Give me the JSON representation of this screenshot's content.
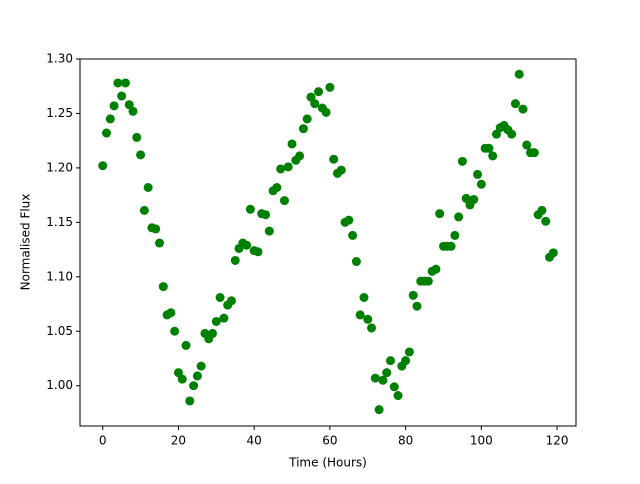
{
  "chart_data": {
    "type": "scatter",
    "x_label": "Time (Hours)",
    "y_label": "Normalised Flux",
    "color": "#008000",
    "x": [
      0,
      1,
      2,
      3,
      4,
      5,
      6,
      7,
      8,
      9,
      10,
      11,
      12,
      13,
      14,
      15,
      16,
      17,
      18,
      19,
      20,
      21,
      22,
      23,
      24,
      25,
      26,
      27,
      28,
      29,
      30,
      31,
      32,
      33,
      34,
      35,
      36,
      37,
      38,
      39,
      40,
      41,
      42,
      43,
      44,
      45,
      46,
      47,
      48,
      49,
      50,
      51,
      52,
      53,
      54,
      55,
      56,
      57,
      58,
      59,
      60,
      61,
      62,
      63,
      64,
      65,
      66,
      67,
      68,
      69,
      70,
      71,
      72,
      73,
      74,
      75,
      76,
      77,
      78,
      79,
      80,
      81,
      82,
      83,
      84,
      85,
      86,
      87,
      88,
      89,
      90,
      91,
      92,
      93,
      94,
      95,
      96,
      97,
      98,
      99,
      100,
      101,
      102,
      103,
      104,
      105,
      106,
      107,
      108,
      109,
      110,
      111,
      112,
      113,
      114,
      115,
      116,
      117,
      118,
      119
    ],
    "values": [
      1.202,
      1.232,
      1.245,
      1.257,
      1.278,
      1.266,
      1.278,
      1.258,
      1.252,
      1.228,
      1.212,
      1.161,
      1.182,
      1.145,
      1.144,
      1.131,
      1.091,
      1.065,
      1.067,
      1.05,
      1.012,
      1.006,
      1.037,
      0.986,
      1.0,
      1.009,
      1.018,
      1.048,
      1.043,
      1.048,
      1.059,
      1.081,
      1.062,
      1.074,
      1.078,
      1.115,
      1.126,
      1.131,
      1.129,
      1.162,
      1.124,
      1.123,
      1.158,
      1.157,
      1.142,
      1.179,
      1.182,
      1.199,
      1.17,
      1.201,
      1.222,
      1.207,
      1.211,
      1.236,
      1.245,
      1.265,
      1.259,
      1.27,
      1.255,
      1.251,
      1.274,
      1.208,
      1.195,
      1.198,
      1.15,
      1.152,
      1.138,
      1.114,
      1.065,
      1.081,
      1.061,
      1.053,
      1.007,
      0.978,
      1.005,
      1.012,
      1.023,
      0.999,
      0.991,
      1.018,
      1.023,
      1.031,
      1.083,
      1.073,
      1.096,
      1.096,
      1.096,
      1.105,
      1.107,
      1.158,
      1.128,
      1.128,
      1.128,
      1.138,
      1.155,
      1.206,
      1.172,
      1.166,
      1.171,
      1.194,
      1.185,
      1.218,
      1.218,
      1.211,
      1.231,
      1.237,
      1.239,
      1.235,
      1.231,
      1.259,
      1.286,
      1.254,
      1.221,
      1.214,
      1.214,
      1.157,
      1.161,
      1.151,
      1.118,
      1.122
    ],
    "xlim": [
      -6,
      125
    ],
    "xticks": [
      0,
      20,
      40,
      60,
      80,
      100,
      120
    ],
    "ylim": [
      0.963,
      1.3
    ],
    "yticks": [
      {
        "value": 1.0,
        "label": "1.00"
      },
      1.05,
      {
        "value": 1.1,
        "label": "1.10"
      },
      1.15,
      {
        "value": 1.2,
        "label": "1.20"
      },
      1.25,
      {
        "value": 1.3,
        "label": "1.30"
      }
    ]
  }
}
